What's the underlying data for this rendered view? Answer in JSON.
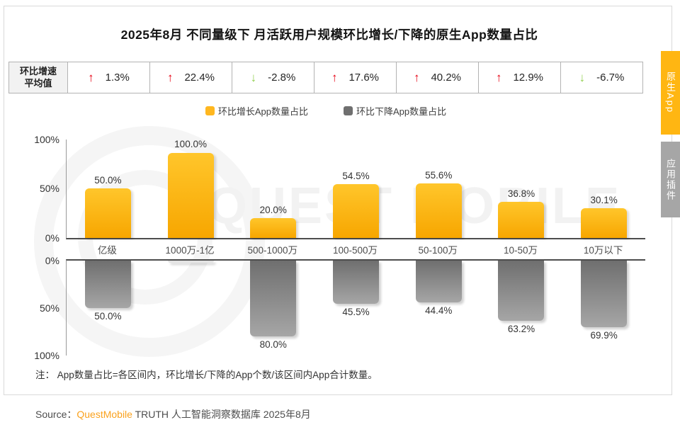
{
  "title": "2025年8月 不同量级下 月活跃用户规模环比增长/下降的原生App数量占比",
  "stats": {
    "label_line1": "环比增速",
    "label_line2": "平均值",
    "up_color": "#e60012",
    "down_color": "#92d050",
    "values": [
      {
        "direction": "up",
        "text": "1.3%"
      },
      {
        "direction": "up",
        "text": "22.4%"
      },
      {
        "direction": "down",
        "text": "-2.8%"
      },
      {
        "direction": "up",
        "text": "17.6%"
      },
      {
        "direction": "up",
        "text": "40.2%"
      },
      {
        "direction": "up",
        "text": "12.9%"
      },
      {
        "direction": "down",
        "text": "-6.7%"
      }
    ]
  },
  "legend": [
    {
      "label": "环比增长App数量占比",
      "color": "#ffb71f"
    },
    {
      "label": "环比下降App数量占比",
      "color": "#6f6f6f"
    }
  ],
  "chart_data": {
    "type": "bar",
    "title": "2025年8月 不同量级下 月活跃用户规模环比增长/下降的原生App数量占比",
    "categories": [
      "亿级",
      "1000万-1亿",
      "500-1000万",
      "100-500万",
      "50-100万",
      "10-50万",
      "10万以下"
    ],
    "series": [
      {
        "name": "环比增长App数量占比",
        "direction": "up",
        "values": [
          50.0,
          100.0,
          20.0,
          54.5,
          55.6,
          36.8,
          30.1
        ],
        "labels": [
          "50.0%",
          "100.0%",
          "20.0%",
          "54.5%",
          "55.6%",
          "36.8%",
          "30.1%"
        ],
        "color_top": "#ffc62b",
        "color_bottom": "#f7a600"
      },
      {
        "name": "环比下降App数量占比",
        "direction": "down",
        "values": [
          50.0,
          0.0,
          80.0,
          45.5,
          44.4,
          63.2,
          69.9
        ],
        "labels": [
          "50.0%",
          "",
          "80.0%",
          "45.5%",
          "44.4%",
          "63.2%",
          "69.9%"
        ],
        "color_top": "#6f6f6f",
        "color_bottom": "#a6a6a6"
      }
    ],
    "avg_mom_growth_rate": [
      "1.3%",
      "22.4%",
      "-2.8%",
      "17.6%",
      "40.2%",
      "12.9%",
      "-6.7%"
    ],
    "ylim": [
      0,
      100
    ],
    "top_yticks": [
      "100%",
      "50%",
      "0%"
    ],
    "bottom_yticks": [
      "0%",
      "50%",
      "100%"
    ],
    "legend_position": "top",
    "grid": false
  },
  "side_tabs": [
    {
      "label": "原生App",
      "active": true,
      "color": "#ffb612"
    },
    {
      "label": "应用插件",
      "active": false,
      "color": "#a6a6a6"
    }
  ],
  "watermark_text": "QUEST MOBILE",
  "note": "注： App数量占比=各区间内，环比增长/下降的App个数/该区间内App合计数量。",
  "source": {
    "prefix": "Source：",
    "brand": "QuestMobile",
    "brand_color": "#faa21e",
    "suffix": " TRUTH 人工智能洞察数据库 2025年8月"
  }
}
